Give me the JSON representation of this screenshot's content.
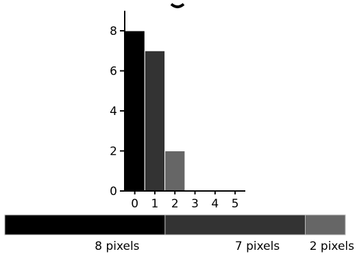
{
  "chart_data": [
    {
      "type": "bar",
      "categories": [
        "0",
        "1",
        "2",
        "3",
        "4",
        "5"
      ],
      "values": [
        8,
        7,
        2,
        0,
        0,
        0
      ],
      "bar_colors": [
        "#000000",
        "#333333",
        "#666666",
        "#999999",
        "#cccccc",
        "#ffffff"
      ],
      "title": "",
      "xlabel": "",
      "ylabel": "",
      "ylim": [
        0,
        9
      ],
      "yticks": [
        0,
        2,
        4,
        6,
        8
      ],
      "grid": false
    },
    {
      "type": "bar",
      "orientation": "horizontal-stacked",
      "segments": [
        {
          "value": 8,
          "color": "#000000",
          "label": "8 pixels"
        },
        {
          "value": 7,
          "color": "#333333",
          "label": "7 pixels"
        },
        {
          "value": 2,
          "color": "#666666",
          "label": "2 pixels"
        }
      ]
    }
  ]
}
